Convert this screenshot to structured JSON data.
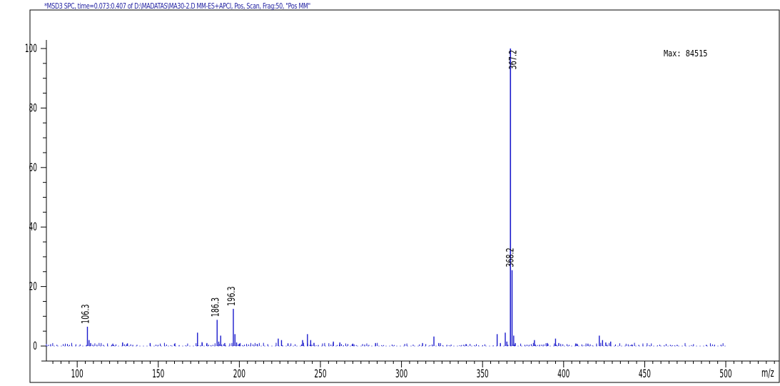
{
  "chart_data": {
    "type": "bar",
    "title": "*MSD3 SPC, time=0.073:0.407 of D:\\MADATAS\\MA30-2.D   MM-ES+APCI, Pos, Scan, Frag:50, \"Pos MM\"",
    "xlabel": "m/z",
    "ylabel": "",
    "max_label": "Max: 84515",
    "xlim": [
      81,
      533
    ],
    "ylim": [
      0,
      100
    ],
    "x_ticks": [
      100,
      150,
      200,
      250,
      300,
      350,
      400,
      450,
      500
    ],
    "y_ticks": [
      0,
      20,
      40,
      60,
      80,
      100
    ],
    "grid": false,
    "color": "#1a1acc",
    "peaks": [
      {
        "x": 106.3,
        "y": 6.5,
        "label": "106.3"
      },
      {
        "x": 107.3,
        "y": 2.0
      },
      {
        "x": 108.3,
        "y": 1.0
      },
      {
        "x": 122.0,
        "y": 0.8
      },
      {
        "x": 128.0,
        "y": 1.2
      },
      {
        "x": 131.0,
        "y": 0.9
      },
      {
        "x": 145.0,
        "y": 1.0
      },
      {
        "x": 160.0,
        "y": 0.7
      },
      {
        "x": 174.2,
        "y": 4.5
      },
      {
        "x": 177.0,
        "y": 1.3
      },
      {
        "x": 180.0,
        "y": 1.0
      },
      {
        "x": 186.3,
        "y": 8.8,
        "label": "186.3"
      },
      {
        "x": 187.3,
        "y": 1.5
      },
      {
        "x": 188.5,
        "y": 3.5
      },
      {
        "x": 191.0,
        "y": 1.0
      },
      {
        "x": 196.3,
        "y": 12.5,
        "label": "196.3"
      },
      {
        "x": 197.3,
        "y": 4.0
      },
      {
        "x": 198.3,
        "y": 1.2
      },
      {
        "x": 200.0,
        "y": 0.8
      },
      {
        "x": 211.0,
        "y": 0.7
      },
      {
        "x": 224.0,
        "y": 2.5
      },
      {
        "x": 226.0,
        "y": 2.0
      },
      {
        "x": 230.0,
        "y": 0.9
      },
      {
        "x": 239.0,
        "y": 2.0
      },
      {
        "x": 242.0,
        "y": 4.0
      },
      {
        "x": 244.0,
        "y": 2.0
      },
      {
        "x": 246.0,
        "y": 1.0
      },
      {
        "x": 258.0,
        "y": 1.5
      },
      {
        "x": 262.0,
        "y": 1.2
      },
      {
        "x": 270.0,
        "y": 0.8
      },
      {
        "x": 284.0,
        "y": 1.0
      },
      {
        "x": 313.0,
        "y": 1.0
      },
      {
        "x": 320.0,
        "y": 3.2
      },
      {
        "x": 323.0,
        "y": 1.0
      },
      {
        "x": 340.0,
        "y": 0.6
      },
      {
        "x": 359.0,
        "y": 4.0
      },
      {
        "x": 361.0,
        "y": 1.0
      },
      {
        "x": 364.0,
        "y": 4.5
      },
      {
        "x": 365.0,
        "y": 1.5
      },
      {
        "x": 367.2,
        "y": 100,
        "label": "367.2"
      },
      {
        "x": 368.2,
        "y": 25.5,
        "label": "368.2"
      },
      {
        "x": 369.2,
        "y": 3.5
      },
      {
        "x": 370.2,
        "y": 1.0
      },
      {
        "x": 382.0,
        "y": 2.0
      },
      {
        "x": 390.0,
        "y": 1.0
      },
      {
        "x": 395.0,
        "y": 2.5
      },
      {
        "x": 397.0,
        "y": 1.0
      },
      {
        "x": 408.0,
        "y": 0.8
      },
      {
        "x": 415.0,
        "y": 0.8
      },
      {
        "x": 422.0,
        "y": 3.5
      },
      {
        "x": 424.0,
        "y": 2.0
      },
      {
        "x": 426.0,
        "y": 1.2
      },
      {
        "x": 429.0,
        "y": 1.5
      },
      {
        "x": 442.0,
        "y": 0.5
      },
      {
        "x": 470.0,
        "y": 0.4
      },
      {
        "x": 488.0,
        "y": 0.4
      }
    ]
  }
}
